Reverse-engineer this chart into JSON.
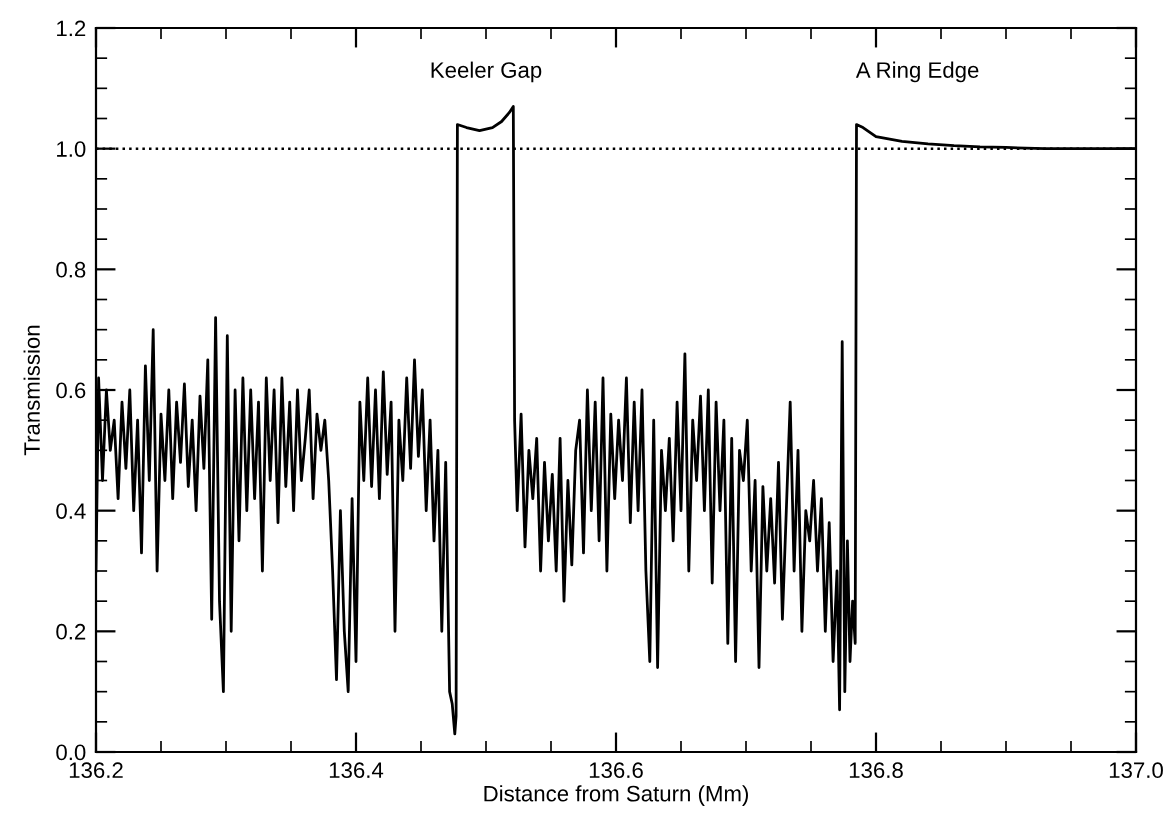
{
  "chart_data": {
    "type": "line",
    "xlabel": "Distance from Saturn (Mm)",
    "ylabel": "Transmission",
    "annotations": [
      "Keeler Gap",
      "A Ring Edge"
    ],
    "x": [
      136.2,
      136.202,
      136.205,
      136.208,
      136.211,
      136.214,
      136.217,
      136.22,
      136.223,
      136.226,
      136.229,
      136.232,
      136.235,
      136.238,
      136.241,
      136.244,
      136.247,
      136.25,
      136.253,
      136.256,
      136.259,
      136.262,
      136.265,
      136.268,
      136.271,
      136.274,
      136.277,
      136.28,
      136.283,
      136.286,
      136.289,
      136.292,
      136.295,
      136.298,
      136.301,
      136.304,
      136.307,
      136.31,
      136.313,
      136.316,
      136.319,
      136.322,
      136.325,
      136.328,
      136.331,
      136.334,
      136.337,
      136.34,
      136.343,
      136.346,
      136.349,
      136.352,
      136.355,
      136.358,
      136.361,
      136.364,
      136.367,
      136.37,
      136.373,
      136.376,
      136.379,
      136.382,
      136.385,
      136.388,
      136.391,
      136.394,
      136.397,
      136.4,
      136.403,
      136.406,
      136.409,
      136.412,
      136.415,
      136.418,
      136.421,
      136.424,
      136.427,
      136.43,
      136.433,
      136.436,
      136.439,
      136.442,
      136.445,
      136.448,
      136.451,
      136.454,
      136.457,
      136.46,
      136.463,
      136.466,
      136.469,
      136.472,
      136.474,
      136.476,
      136.477,
      136.478,
      136.485,
      136.495,
      136.505,
      136.512,
      136.518,
      136.521,
      136.522,
      136.524,
      136.527,
      136.53,
      136.533,
      136.536,
      136.539,
      136.542,
      136.545,
      136.548,
      136.551,
      136.554,
      136.557,
      136.56,
      136.563,
      136.566,
      136.569,
      136.572,
      136.575,
      136.578,
      136.581,
      136.584,
      136.587,
      136.59,
      136.593,
      136.596,
      136.599,
      136.602,
      136.605,
      136.608,
      136.611,
      136.614,
      136.617,
      136.62,
      136.623,
      136.626,
      136.629,
      136.632,
      136.635,
      136.638,
      136.641,
      136.644,
      136.647,
      136.65,
      136.653,
      136.656,
      136.659,
      136.662,
      136.665,
      136.668,
      136.671,
      136.674,
      136.677,
      136.68,
      136.683,
      136.686,
      136.689,
      136.692,
      136.695,
      136.698,
      136.701,
      136.704,
      136.707,
      136.71,
      136.713,
      136.716,
      136.719,
      136.722,
      136.725,
      136.728,
      136.731,
      136.734,
      136.737,
      136.74,
      136.743,
      136.746,
      136.749,
      136.752,
      136.755,
      136.758,
      136.761,
      136.764,
      136.767,
      136.77,
      136.772,
      136.774,
      136.776,
      136.778,
      136.78,
      136.782,
      136.784,
      136.785,
      136.79,
      136.8,
      136.82,
      136.84,
      136.86,
      136.88,
      136.9,
      136.93,
      136.96,
      137.0
    ],
    "series": [
      {
        "color": "#000000",
        "values": [
          0.3,
          0.62,
          0.45,
          0.6,
          0.5,
          0.55,
          0.42,
          0.58,
          0.47,
          0.6,
          0.4,
          0.55,
          0.33,
          0.64,
          0.45,
          0.7,
          0.3,
          0.56,
          0.45,
          0.6,
          0.42,
          0.58,
          0.48,
          0.61,
          0.44,
          0.55,
          0.4,
          0.59,
          0.47,
          0.65,
          0.22,
          0.72,
          0.25,
          0.1,
          0.69,
          0.2,
          0.6,
          0.35,
          0.62,
          0.4,
          0.6,
          0.42,
          0.58,
          0.3,
          0.62,
          0.45,
          0.6,
          0.38,
          0.62,
          0.44,
          0.58,
          0.4,
          0.6,
          0.45,
          0.52,
          0.6,
          0.42,
          0.56,
          0.5,
          0.55,
          0.45,
          0.3,
          0.12,
          0.4,
          0.2,
          0.1,
          0.42,
          0.15,
          0.58,
          0.45,
          0.62,
          0.44,
          0.6,
          0.42,
          0.63,
          0.46,
          0.58,
          0.2,
          0.55,
          0.45,
          0.62,
          0.47,
          0.65,
          0.49,
          0.6,
          0.4,
          0.55,
          0.35,
          0.5,
          0.2,
          0.48,
          0.1,
          0.08,
          0.03,
          0.06,
          1.04,
          1.035,
          1.03,
          1.035,
          1.045,
          1.06,
          1.07,
          0.55,
          0.4,
          0.56,
          0.34,
          0.5,
          0.42,
          0.52,
          0.3,
          0.48,
          0.35,
          0.46,
          0.3,
          0.52,
          0.25,
          0.45,
          0.31,
          0.5,
          0.55,
          0.33,
          0.6,
          0.4,
          0.58,
          0.35,
          0.62,
          0.3,
          0.56,
          0.42,
          0.55,
          0.45,
          0.62,
          0.38,
          0.58,
          0.4,
          0.6,
          0.3,
          0.15,
          0.55,
          0.14,
          0.5,
          0.4,
          0.52,
          0.35,
          0.58,
          0.4,
          0.66,
          0.3,
          0.55,
          0.45,
          0.59,
          0.4,
          0.6,
          0.28,
          0.58,
          0.4,
          0.55,
          0.18,
          0.52,
          0.15,
          0.5,
          0.45,
          0.55,
          0.3,
          0.45,
          0.14,
          0.44,
          0.3,
          0.42,
          0.28,
          0.48,
          0.22,
          0.4,
          0.58,
          0.3,
          0.5,
          0.2,
          0.4,
          0.35,
          0.45,
          0.3,
          0.42,
          0.2,
          0.38,
          0.15,
          0.3,
          0.07,
          0.68,
          0.1,
          0.35,
          0.15,
          0.25,
          0.18,
          1.04,
          1.035,
          1.02,
          1.012,
          1.008,
          1.005,
          1.003,
          1.002,
          1.0,
          1.0,
          1.0
        ]
      }
    ],
    "xlim": [
      136.2,
      137.0
    ],
    "ylim": [
      0.0,
      1.2
    ],
    "xticks": [
      136.2,
      136.4,
      136.6,
      136.8,
      {
        "value": 137.0,
        "label": "137.0"
      }
    ],
    "yticks": [
      {
        "value": 0.0,
        "label": "0.0"
      },
      0.2,
      0.4,
      0.6,
      0.8,
      {
        "value": 1.0,
        "label": "1.0"
      },
      1.2
    ],
    "ref_lines": [
      {
        "axis": "y",
        "value": 1.0,
        "color": "#000000",
        "line_style": "dotted"
      }
    ],
    "grid": false,
    "legend": false,
    "marker": "none",
    "line_style": "solid"
  }
}
